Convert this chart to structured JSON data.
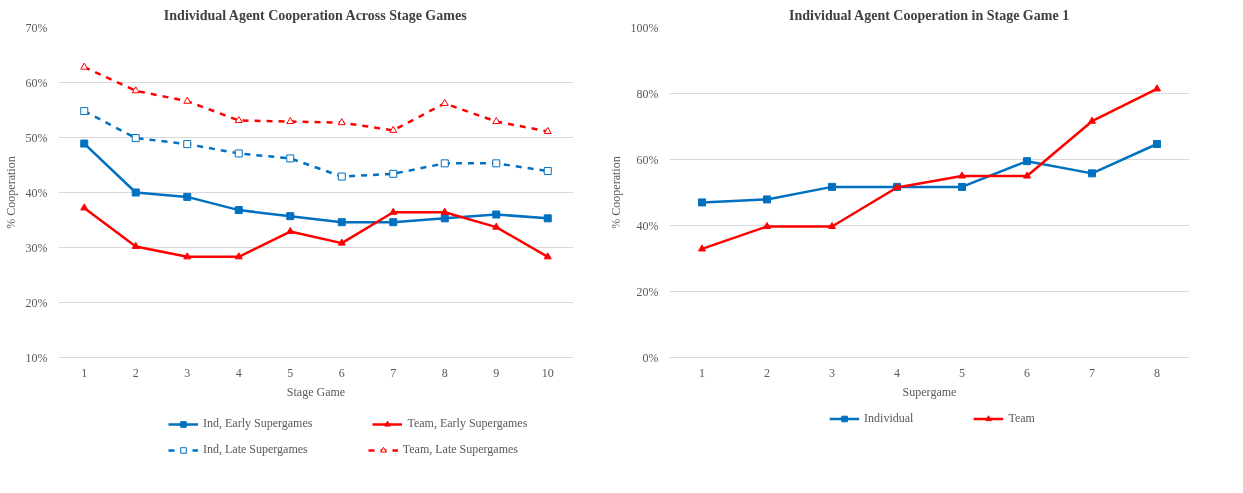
{
  "chart_data": [
    {
      "type": "line",
      "title": "Individual Agent Cooperation Across Stage Games",
      "xlabel": "Stage Game",
      "ylabel": "% Cooperation",
      "categories": [
        "1",
        "2",
        "3",
        "4",
        "5",
        "6",
        "7",
        "8",
        "9",
        "10"
      ],
      "ylim": [
        10,
        70
      ],
      "yticks": [
        {
          "value": 10,
          "label": "10%"
        },
        {
          "value": 20,
          "label": "20%"
        },
        {
          "value": 30,
          "label": "30%"
        },
        {
          "value": 40,
          "label": "40%"
        },
        {
          "value": 50,
          "label": "50%"
        },
        {
          "value": 60,
          "label": "60%"
        },
        {
          "value": 70,
          "label": "70%"
        }
      ],
      "grid": "y",
      "legend": "bottom",
      "series": [
        {
          "name": "Ind, Early Supergames",
          "color": "#0070c0",
          "marker": "square",
          "line_style": "solid",
          "values": [
            48.9,
            40.0,
            39.2,
            36.8,
            35.7,
            34.6,
            34.6,
            35.3,
            36.0,
            35.3
          ]
        },
        {
          "name": "Team, Early Supergames",
          "color": "#ff0000",
          "marker": "triangle",
          "line_style": "solid",
          "values": [
            37.2,
            30.2,
            28.3,
            28.3,
            32.9,
            30.8,
            36.4,
            36.4,
            33.7,
            28.3
          ]
        },
        {
          "name": "Ind, Late Supergames",
          "color": "#0070c0",
          "marker": "square",
          "line_style": "dashed",
          "values": [
            54.8,
            49.9,
            48.8,
            47.1,
            46.2,
            42.9,
            43.4,
            45.3,
            45.3,
            43.9
          ]
        },
        {
          "name": "Team, Late Supergames",
          "color": "#ff0000",
          "marker": "triangle",
          "line_style": "dashed",
          "values": [
            62.8,
            58.5,
            56.6,
            53.1,
            52.9,
            52.7,
            51.3,
            56.2,
            52.9,
            51.1
          ]
        }
      ]
    },
    {
      "type": "line",
      "title": "Individual Agent Cooperation in Stage Game 1",
      "xlabel": "Supergame",
      "ylabel": "% Cooperation",
      "categories": [
        "1",
        "2",
        "3",
        "4",
        "5",
        "6",
        "7",
        "8"
      ],
      "ylim": [
        0,
        100
      ],
      "yticks": [
        {
          "value": 0,
          "label": "0%"
        },
        {
          "value": 20,
          "label": "20%"
        },
        {
          "value": 40,
          "label": "40%"
        },
        {
          "value": 60,
          "label": "60%"
        },
        {
          "value": 80,
          "label": "80%"
        },
        {
          "value": 100,
          "label": "100%"
        }
      ],
      "grid": "y",
      "legend": "bottom",
      "series": [
        {
          "name": "Individual",
          "color": "#0070c0",
          "marker": "square",
          "line_style": "solid",
          "values": [
            47.0,
            47.9,
            51.7,
            51.7,
            51.7,
            59.5,
            55.8,
            64.7
          ]
        },
        {
          "name": "Team",
          "color": "#ff0000",
          "marker": "triangle",
          "line_style": "solid",
          "values": [
            32.9,
            39.7,
            39.7,
            51.5,
            55.0,
            55.0,
            71.6,
            81.4
          ]
        }
      ]
    }
  ]
}
